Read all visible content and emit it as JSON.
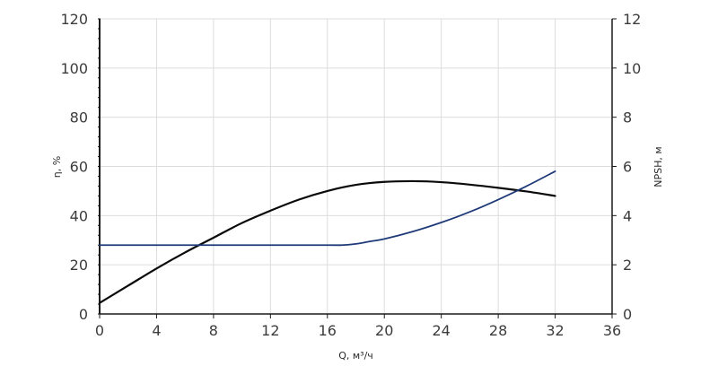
{
  "chart_data": {
    "type": "line",
    "title": "",
    "xlabel": "Q, м³/ч",
    "ylabel_left": "η, %",
    "ylabel_right": "NPSH, м",
    "xlim": [
      0,
      36
    ],
    "ylim_left": [
      0,
      120
    ],
    "ylim_right": [
      0,
      12
    ],
    "x_ticks": [
      0,
      4,
      8,
      12,
      16,
      20,
      24,
      28,
      32,
      36
    ],
    "y_left_ticks": [
      0,
      20,
      40,
      60,
      80,
      100,
      120
    ],
    "y_right_ticks": [
      0,
      2,
      4,
      6,
      8,
      10,
      12
    ],
    "grid": true,
    "colors": {
      "efficiency": "#0a0a0a",
      "npsh": "#1f3a78",
      "grid": "#dcdcdc",
      "axis": "#1a1a1a"
    },
    "series": [
      {
        "key": "efficiency",
        "axis": "left",
        "x": [
          0,
          2,
          4,
          6,
          8,
          10,
          12,
          14,
          16,
          18,
          20,
          22,
          24,
          26,
          28,
          30,
          32
        ],
        "y": [
          4.5,
          11.5,
          18.5,
          25,
          31,
          37,
          42,
          46.5,
          50,
          52.5,
          53.7,
          54,
          53.6,
          52.6,
          51.3,
          49.8,
          48
        ]
      },
      {
        "key": "npsh",
        "axis": "right",
        "x": [
          0,
          8,
          16,
          17,
          18,
          19,
          20,
          22,
          24,
          26,
          28,
          30,
          32
        ],
        "y": [
          2.8,
          2.8,
          2.8,
          2.8,
          2.85,
          2.95,
          3.05,
          3.35,
          3.72,
          4.15,
          4.65,
          5.2,
          5.8
        ]
      }
    ]
  }
}
